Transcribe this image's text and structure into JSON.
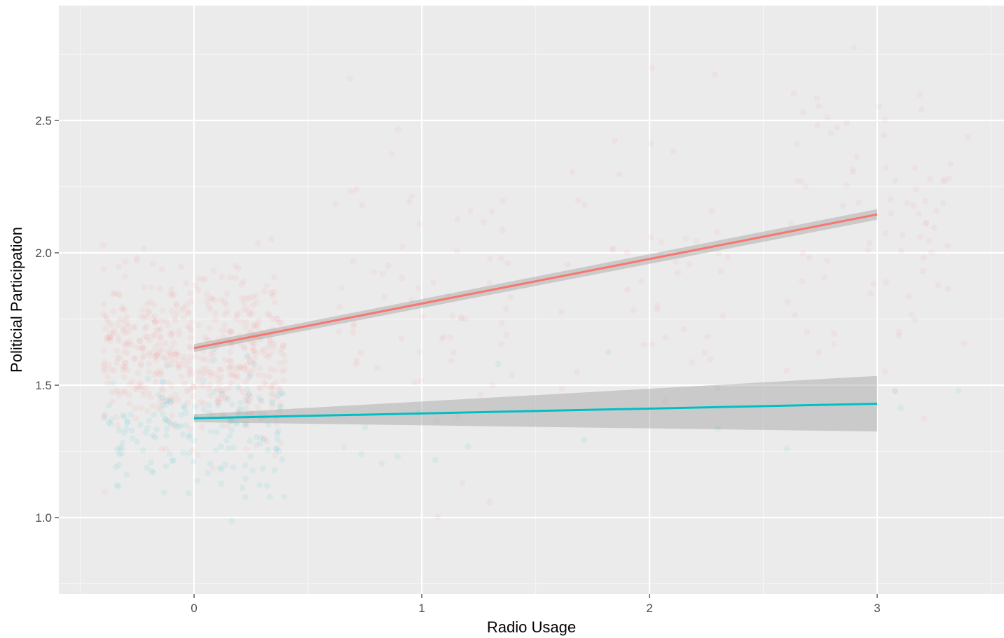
{
  "chart_data": {
    "type": "scatter",
    "title": "",
    "xlabel": "Radio Usage",
    "ylabel": "Politicial Participation",
    "xlim": [
      -0.5,
      3.55
    ],
    "ylim": [
      0.72,
      2.89
    ],
    "x_ticks": [
      {
        "value": 0,
        "label": "0"
      },
      {
        "value": 1,
        "label": "1"
      },
      {
        "value": 2,
        "label": "2"
      },
      {
        "value": 3,
        "label": "3"
      }
    ],
    "y_ticks": [
      {
        "value": 1.0,
        "label": "1.0"
      },
      {
        "value": 1.5,
        "label": "1.5"
      },
      {
        "value": 2.0,
        "label": "2.0"
      },
      {
        "value": 2.5,
        "label": "2.5"
      }
    ],
    "grid": true,
    "legend": "none",
    "jitter": 0.4,
    "series": [
      {
        "color": "#F8766D",
        "fit_line": {
          "x": [
            0,
            3
          ],
          "y": [
            1.64,
            2.145
          ]
        },
        "ribbon": {
          "x": [
            0,
            3
          ],
          "lower": [
            1.625,
            2.125
          ],
          "upper": [
            1.655,
            2.165
          ]
        },
        "points": [
          {
            "x": 0,
            "count": 520,
            "mean": 1.62,
            "sd": 0.15
          },
          {
            "x": 1,
            "count": 70,
            "mean": 1.8,
            "sd": 0.28
          },
          {
            "x": 2,
            "count": 45,
            "mean": 1.95,
            "sd": 0.3
          },
          {
            "x": 3,
            "count": 85,
            "mean": 2.1,
            "sd": 0.3
          }
        ]
      },
      {
        "color": "#00BFC4",
        "fit_line": {
          "x": [
            0,
            3
          ],
          "y": [
            1.375,
            1.43
          ]
        },
        "ribbon": {
          "x": [
            0,
            3
          ],
          "lower": [
            1.36,
            1.325
          ],
          "upper": [
            1.39,
            1.535
          ]
        },
        "points": [
          {
            "x": 0,
            "count": 170,
            "mean": 1.33,
            "sd": 0.12
          },
          {
            "x": 1,
            "count": 8,
            "mean": 1.3,
            "sd": 0.2
          },
          {
            "x": 2,
            "count": 3,
            "mean": 1.25,
            "sd": 0.2
          },
          {
            "x": 3,
            "count": 4,
            "mean": 1.4,
            "sd": 0.15
          }
        ]
      }
    ]
  }
}
